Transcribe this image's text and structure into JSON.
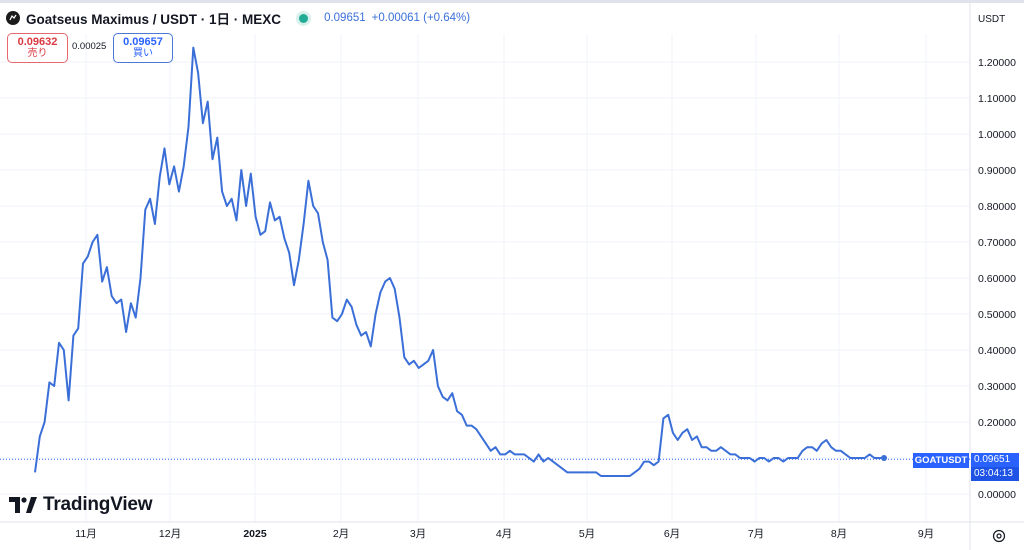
{
  "header": {
    "title": "Goatseus Maximus / USDT · 1日 · MEXC",
    "last_price": "0.09651",
    "change": "+0.00061 (+0.64%)"
  },
  "trade": {
    "sell_price": "0.09632",
    "sell_label": "売り",
    "spread": "0.00025",
    "buy_price": "0.09657",
    "buy_label": "買い"
  },
  "currency_button": "USDT",
  "symbol_tag": "GOATUSDT",
  "price_tag": {
    "price": "0.09651",
    "countdown": "03:04:13"
  },
  "brand": "TradingView",
  "colors": {
    "line": "#3b6fd8",
    "accent": "#2962ff",
    "sell": "#d9383f",
    "live": "#22ab94"
  },
  "chart_data": {
    "type": "line",
    "series": [
      {
        "values": [
          [
            1,
            0.06
          ],
          [
            2,
            0.16
          ],
          [
            3,
            0.2
          ],
          [
            4,
            0.31
          ],
          [
            5,
            0.3
          ],
          [
            6,
            0.42
          ],
          [
            7,
            0.4
          ],
          [
            8,
            0.26
          ],
          [
            9,
            0.44
          ],
          [
            10,
            0.46
          ],
          [
            11,
            0.64
          ],
          [
            12,
            0.66
          ],
          [
            13,
            0.7
          ],
          [
            14,
            0.72
          ],
          [
            15,
            0.59
          ],
          [
            16,
            0.63
          ],
          [
            17,
            0.55
          ],
          [
            18,
            0.53
          ],
          [
            19,
            0.54
          ],
          [
            20,
            0.45
          ],
          [
            21,
            0.53
          ],
          [
            22,
            0.49
          ],
          [
            23,
            0.6
          ],
          [
            24,
            0.79
          ],
          [
            25,
            0.82
          ],
          [
            26,
            0.75
          ],
          [
            27,
            0.88
          ],
          [
            28,
            0.96
          ],
          [
            29,
            0.86
          ],
          [
            30,
            0.91
          ],
          [
            31,
            0.84
          ],
          [
            32,
            0.91
          ],
          [
            33,
            1.02
          ],
          [
            34,
            1.24
          ],
          [
            35,
            1.17
          ],
          [
            36,
            1.03
          ],
          [
            37,
            1.09
          ],
          [
            38,
            0.93
          ],
          [
            39,
            0.99
          ],
          [
            40,
            0.84
          ],
          [
            41,
            0.8
          ],
          [
            42,
            0.82
          ],
          [
            43,
            0.76
          ],
          [
            44,
            0.9
          ],
          [
            45,
            0.8
          ],
          [
            46,
            0.89
          ],
          [
            47,
            0.77
          ],
          [
            48,
            0.72
          ],
          [
            49,
            0.73
          ],
          [
            50,
            0.81
          ],
          [
            51,
            0.76
          ],
          [
            52,
            0.77
          ],
          [
            53,
            0.71
          ],
          [
            54,
            0.67
          ],
          [
            55,
            0.58
          ],
          [
            56,
            0.65
          ],
          [
            57,
            0.75
          ],
          [
            58,
            0.87
          ],
          [
            59,
            0.8
          ],
          [
            60,
            0.78
          ],
          [
            61,
            0.7
          ],
          [
            62,
            0.65
          ],
          [
            63,
            0.49
          ],
          [
            64,
            0.48
          ],
          [
            65,
            0.5
          ],
          [
            66,
            0.54
          ],
          [
            67,
            0.52
          ],
          [
            68,
            0.47
          ],
          [
            69,
            0.44
          ],
          [
            70,
            0.45
          ],
          [
            71,
            0.41
          ],
          [
            72,
            0.5
          ],
          [
            73,
            0.56
          ],
          [
            74,
            0.59
          ],
          [
            75,
            0.6
          ],
          [
            76,
            0.57
          ],
          [
            77,
            0.49
          ],
          [
            78,
            0.38
          ],
          [
            79,
            0.36
          ],
          [
            80,
            0.37
          ],
          [
            81,
            0.35
          ],
          [
            82,
            0.36
          ],
          [
            83,
            0.37
          ],
          [
            84,
            0.4
          ],
          [
            85,
            0.3
          ],
          [
            86,
            0.27
          ],
          [
            87,
            0.26
          ],
          [
            88,
            0.28
          ],
          [
            89,
            0.23
          ],
          [
            90,
            0.22
          ],
          [
            91,
            0.19
          ],
          [
            92,
            0.19
          ],
          [
            93,
            0.18
          ],
          [
            94,
            0.16
          ],
          [
            95,
            0.14
          ],
          [
            96,
            0.12
          ],
          [
            97,
            0.13
          ],
          [
            98,
            0.11
          ],
          [
            99,
            0.11
          ],
          [
            100,
            0.12
          ],
          [
            101,
            0.11
          ],
          [
            102,
            0.11
          ],
          [
            103,
            0.11
          ],
          [
            104,
            0.1
          ],
          [
            105,
            0.09
          ],
          [
            106,
            0.11
          ],
          [
            107,
            0.09
          ],
          [
            108,
            0.1
          ],
          [
            109,
            0.09
          ],
          [
            110,
            0.08
          ],
          [
            111,
            0.07
          ],
          [
            112,
            0.06
          ],
          [
            113,
            0.06
          ],
          [
            114,
            0.06
          ],
          [
            115,
            0.06
          ],
          [
            116,
            0.06
          ],
          [
            117,
            0.06
          ],
          [
            118,
            0.06
          ],
          [
            119,
            0.05
          ],
          [
            120,
            0.05
          ],
          [
            121,
            0.05
          ],
          [
            122,
            0.05
          ],
          [
            123,
            0.05
          ],
          [
            124,
            0.05
          ],
          [
            125,
            0.05
          ],
          [
            126,
            0.06
          ],
          [
            127,
            0.07
          ],
          [
            128,
            0.09
          ],
          [
            129,
            0.09
          ],
          [
            130,
            0.08
          ],
          [
            131,
            0.09
          ],
          [
            132,
            0.21
          ],
          [
            133,
            0.22
          ],
          [
            134,
            0.17
          ],
          [
            135,
            0.15
          ],
          [
            136,
            0.17
          ],
          [
            137,
            0.18
          ],
          [
            138,
            0.15
          ],
          [
            139,
            0.16
          ],
          [
            140,
            0.13
          ],
          [
            141,
            0.13
          ],
          [
            142,
            0.12
          ],
          [
            143,
            0.12
          ],
          [
            144,
            0.13
          ],
          [
            145,
            0.12
          ],
          [
            146,
            0.11
          ],
          [
            147,
            0.11
          ],
          [
            148,
            0.1
          ],
          [
            149,
            0.1
          ],
          [
            150,
            0.1
          ],
          [
            151,
            0.09
          ],
          [
            152,
            0.1
          ],
          [
            153,
            0.1
          ],
          [
            154,
            0.09
          ],
          [
            155,
            0.1
          ],
          [
            156,
            0.1
          ],
          [
            157,
            0.09
          ],
          [
            158,
            0.1
          ],
          [
            159,
            0.1
          ],
          [
            160,
            0.1
          ],
          [
            161,
            0.12
          ],
          [
            162,
            0.13
          ],
          [
            163,
            0.13
          ],
          [
            164,
            0.12
          ],
          [
            165,
            0.14
          ],
          [
            166,
            0.15
          ],
          [
            167,
            0.13
          ],
          [
            168,
            0.12
          ],
          [
            169,
            0.12
          ],
          [
            170,
            0.11
          ],
          [
            171,
            0.1
          ],
          [
            172,
            0.1
          ],
          [
            173,
            0.1
          ],
          [
            174,
            0.1
          ],
          [
            175,
            0.11
          ],
          [
            176,
            0.1
          ],
          [
            177,
            0.1
          ],
          [
            178,
            0.1
          ]
        ]
      }
    ],
    "x_tick_labels": [
      "11月",
      "12月",
      "2025",
      "2月",
      "3月",
      "4月",
      "5月",
      "6月",
      "7月",
      "8月",
      "9月"
    ],
    "y_tick_labels": [
      "1.20000",
      "1.10000",
      "1.00000",
      "0.90000",
      "0.80000",
      "0.70000",
      "0.60000",
      "0.50000",
      "0.40000",
      "0.30000",
      "0.20000",
      "0.10000",
      "0.00000"
    ],
    "ylim": [
      0.0,
      1.2
    ],
    "grid": true,
    "last_value": 0.09651
  }
}
